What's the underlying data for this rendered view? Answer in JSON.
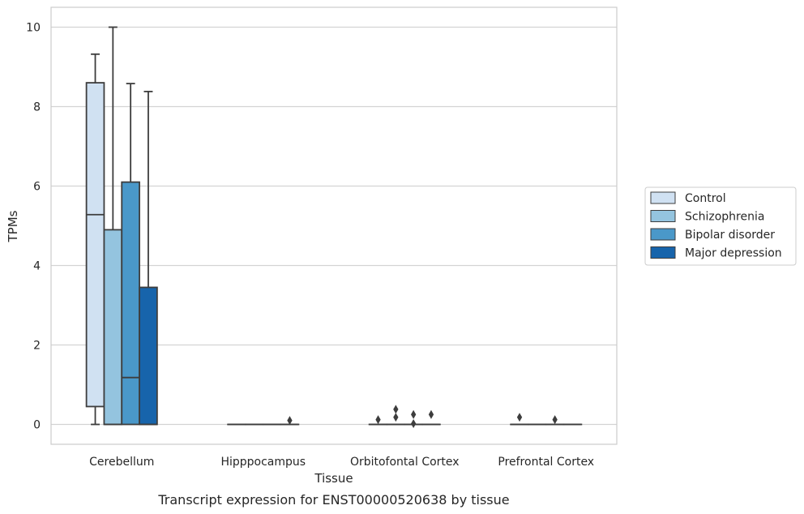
{
  "chart_data": {
    "type": "box",
    "title": "",
    "caption": "Transcript expression for ENST00000520638 by tissue",
    "xlabel": "Tissue",
    "ylabel": "TPMs",
    "ylim": [
      -0.5,
      10.5
    ],
    "yticks": [
      0,
      2,
      4,
      6,
      8,
      10
    ],
    "grid": "horizontal",
    "legend_placement": "right",
    "categories": [
      "Cerebellum",
      "Hipppocampus",
      "Orbitofontal Cortex",
      "Prefrontal Cortex"
    ],
    "series": [
      {
        "name": "Control",
        "color": "#d0e1f2",
        "boxes": [
          {
            "q1": 0.45,
            "median": 5.28,
            "q3": 8.6,
            "whisker_low": 0,
            "whisker_high": 9.32,
            "outliers": []
          },
          {
            "q1": 0,
            "median": 0,
            "q3": 0,
            "whisker_low": 0,
            "whisker_high": 0,
            "outliers": []
          },
          {
            "q1": 0,
            "median": 0,
            "q3": 0,
            "whisker_low": 0,
            "whisker_high": 0,
            "outliers": [
              0.12
            ]
          },
          {
            "q1": 0,
            "median": 0,
            "q3": 0,
            "whisker_low": 0,
            "whisker_high": 0,
            "outliers": [
              0.18
            ]
          }
        ]
      },
      {
        "name": "Schizophrenia",
        "color": "#94c4df",
        "boxes": [
          {
            "q1": 0,
            "median": 0,
            "q3": 4.9,
            "whisker_low": 0,
            "whisker_high": 10.0,
            "outliers": []
          },
          {
            "q1": 0,
            "median": 0,
            "q3": 0,
            "whisker_low": 0,
            "whisker_high": 0,
            "outliers": []
          },
          {
            "q1": 0,
            "median": 0,
            "q3": 0,
            "whisker_low": 0,
            "whisker_high": 0,
            "outliers": [
              0.18,
              0.38
            ]
          },
          {
            "q1": 0,
            "median": 0,
            "q3": 0,
            "whisker_low": 0,
            "whisker_high": 0,
            "outliers": []
          }
        ]
      },
      {
        "name": "Bipolar disorder",
        "color": "#4a98c9",
        "boxes": [
          {
            "q1": 0,
            "median": 1.18,
            "q3": 6.1,
            "whisker_low": 0,
            "whisker_high": 8.58,
            "outliers": []
          },
          {
            "q1": 0,
            "median": 0,
            "q3": 0,
            "whisker_low": 0,
            "whisker_high": 0,
            "outliers": []
          },
          {
            "q1": 0,
            "median": 0,
            "q3": 0,
            "whisker_low": 0,
            "whisker_high": 0,
            "outliers": [
              0.02,
              0.25
            ]
          },
          {
            "q1": 0,
            "median": 0,
            "q3": 0,
            "whisker_low": 0,
            "whisker_high": 0,
            "outliers": [
              0.12
            ]
          }
        ]
      },
      {
        "name": "Major depression",
        "color": "#1764ab",
        "boxes": [
          {
            "q1": 0,
            "median": 0,
            "q3": 3.45,
            "whisker_low": 0,
            "whisker_high": 8.38,
            "outliers": []
          },
          {
            "q1": 0,
            "median": 0,
            "q3": 0,
            "whisker_low": 0,
            "whisker_high": 0,
            "outliers": [
              0.1
            ]
          },
          {
            "q1": 0,
            "median": 0,
            "q3": 0,
            "whisker_low": 0,
            "whisker_high": 0,
            "outliers": [
              0.25
            ]
          },
          {
            "q1": 0,
            "median": 0,
            "q3": 0,
            "whisker_low": 0,
            "whisker_high": 0,
            "outliers": []
          }
        ]
      }
    ]
  },
  "colors": {
    "grid": "#d3d3d3",
    "frame": "#cccccc",
    "box_edge": "#3d3d3d",
    "legend_border": "#cccccc"
  }
}
